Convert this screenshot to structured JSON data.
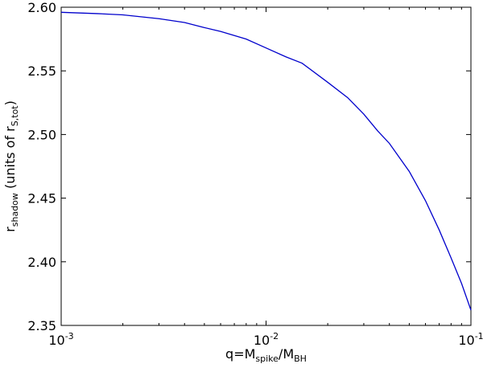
{
  "chart_data": {
    "type": "line",
    "xlabel": [
      {
        "text": "q=M"
      },
      {
        "text": "spike",
        "sub": true
      },
      {
        "text": "/M"
      },
      {
        "text": "BH",
        "sub": true
      }
    ],
    "ylabel": [
      {
        "text": "r"
      },
      {
        "text": "shadow",
        "sub": true
      },
      {
        "text": " (units of r"
      },
      {
        "text": "S,tot",
        "sub": true
      },
      {
        "text": ")"
      }
    ],
    "x": [
      0.001,
      0.0015,
      0.002,
      0.003,
      0.004,
      0.005,
      0.006,
      0.008,
      0.01,
      0.0125,
      0.015,
      0.02,
      0.025,
      0.03,
      0.035,
      0.04,
      0.05,
      0.06,
      0.07,
      0.08,
      0.09,
      0.1
    ],
    "series": [
      {
        "color": "#0000cc",
        "values": [
          2.596,
          2.595,
          2.594,
          2.591,
          2.588,
          2.584,
          2.581,
          2.575,
          2.568,
          2.561,
          2.556,
          2.541,
          2.529,
          2.516,
          2.503,
          2.493,
          2.471,
          2.448,
          2.425,
          2.403,
          2.383,
          2.362
        ]
      }
    ],
    "xlim": [
      0.001,
      0.1
    ],
    "xlog": true,
    "xticks": [
      {
        "value": 0.001,
        "label": "10",
        "exponent": "-3"
      },
      {
        "value": 0.01,
        "label": "10",
        "exponent": "-2"
      },
      {
        "value": 0.1,
        "label": "10",
        "exponent": "-1"
      }
    ],
    "ylim": [
      2.35,
      2.6
    ],
    "yticks": [
      2.35,
      {
        "value": 2.4,
        "label": "2.40"
      },
      2.45,
      {
        "value": 2.5,
        "label": "2.50"
      },
      2.55,
      {
        "value": 2.6,
        "label": "2.60"
      }
    ]
  }
}
